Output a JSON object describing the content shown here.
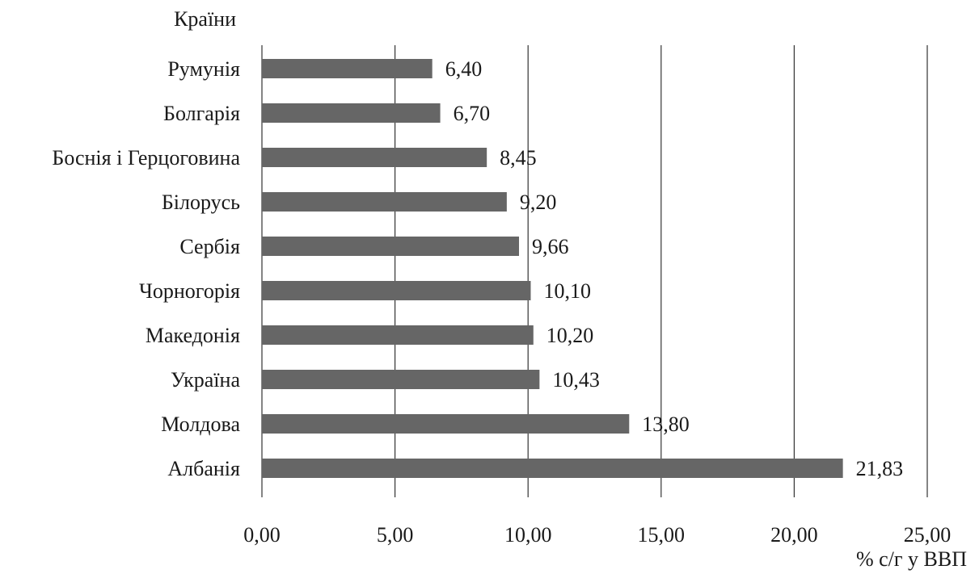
{
  "chart_data": {
    "type": "bar",
    "orientation": "horizontal",
    "ylabel": "Країни",
    "xlabel": "% с/г у ВВП",
    "categories": [
      "Румунія",
      "Болгарія",
      "Боснія і Герцоговина",
      "Білорусь",
      "Сербія",
      "Чорногорія",
      "Македонія",
      "Україна",
      "Молдова",
      "Албанія"
    ],
    "values": [
      6.4,
      6.7,
      8.45,
      9.2,
      9.66,
      10.1,
      10.2,
      10.43,
      13.8,
      21.83
    ],
    "value_labels": [
      "6,40",
      "6,70",
      "8,45",
      "9,20",
      "9,66",
      "10,10",
      "10,20",
      "10,43",
      "13,80",
      "21,83"
    ],
    "xlim": [
      0,
      25
    ],
    "xticks": [
      0,
      5,
      10,
      15,
      20,
      25
    ],
    "xtick_labels": [
      "0,00",
      "5,00",
      "10,00",
      "15,00",
      "20,00",
      "25,00"
    ],
    "grid": "vertical",
    "legend": "none",
    "bar_color": "#666666"
  }
}
